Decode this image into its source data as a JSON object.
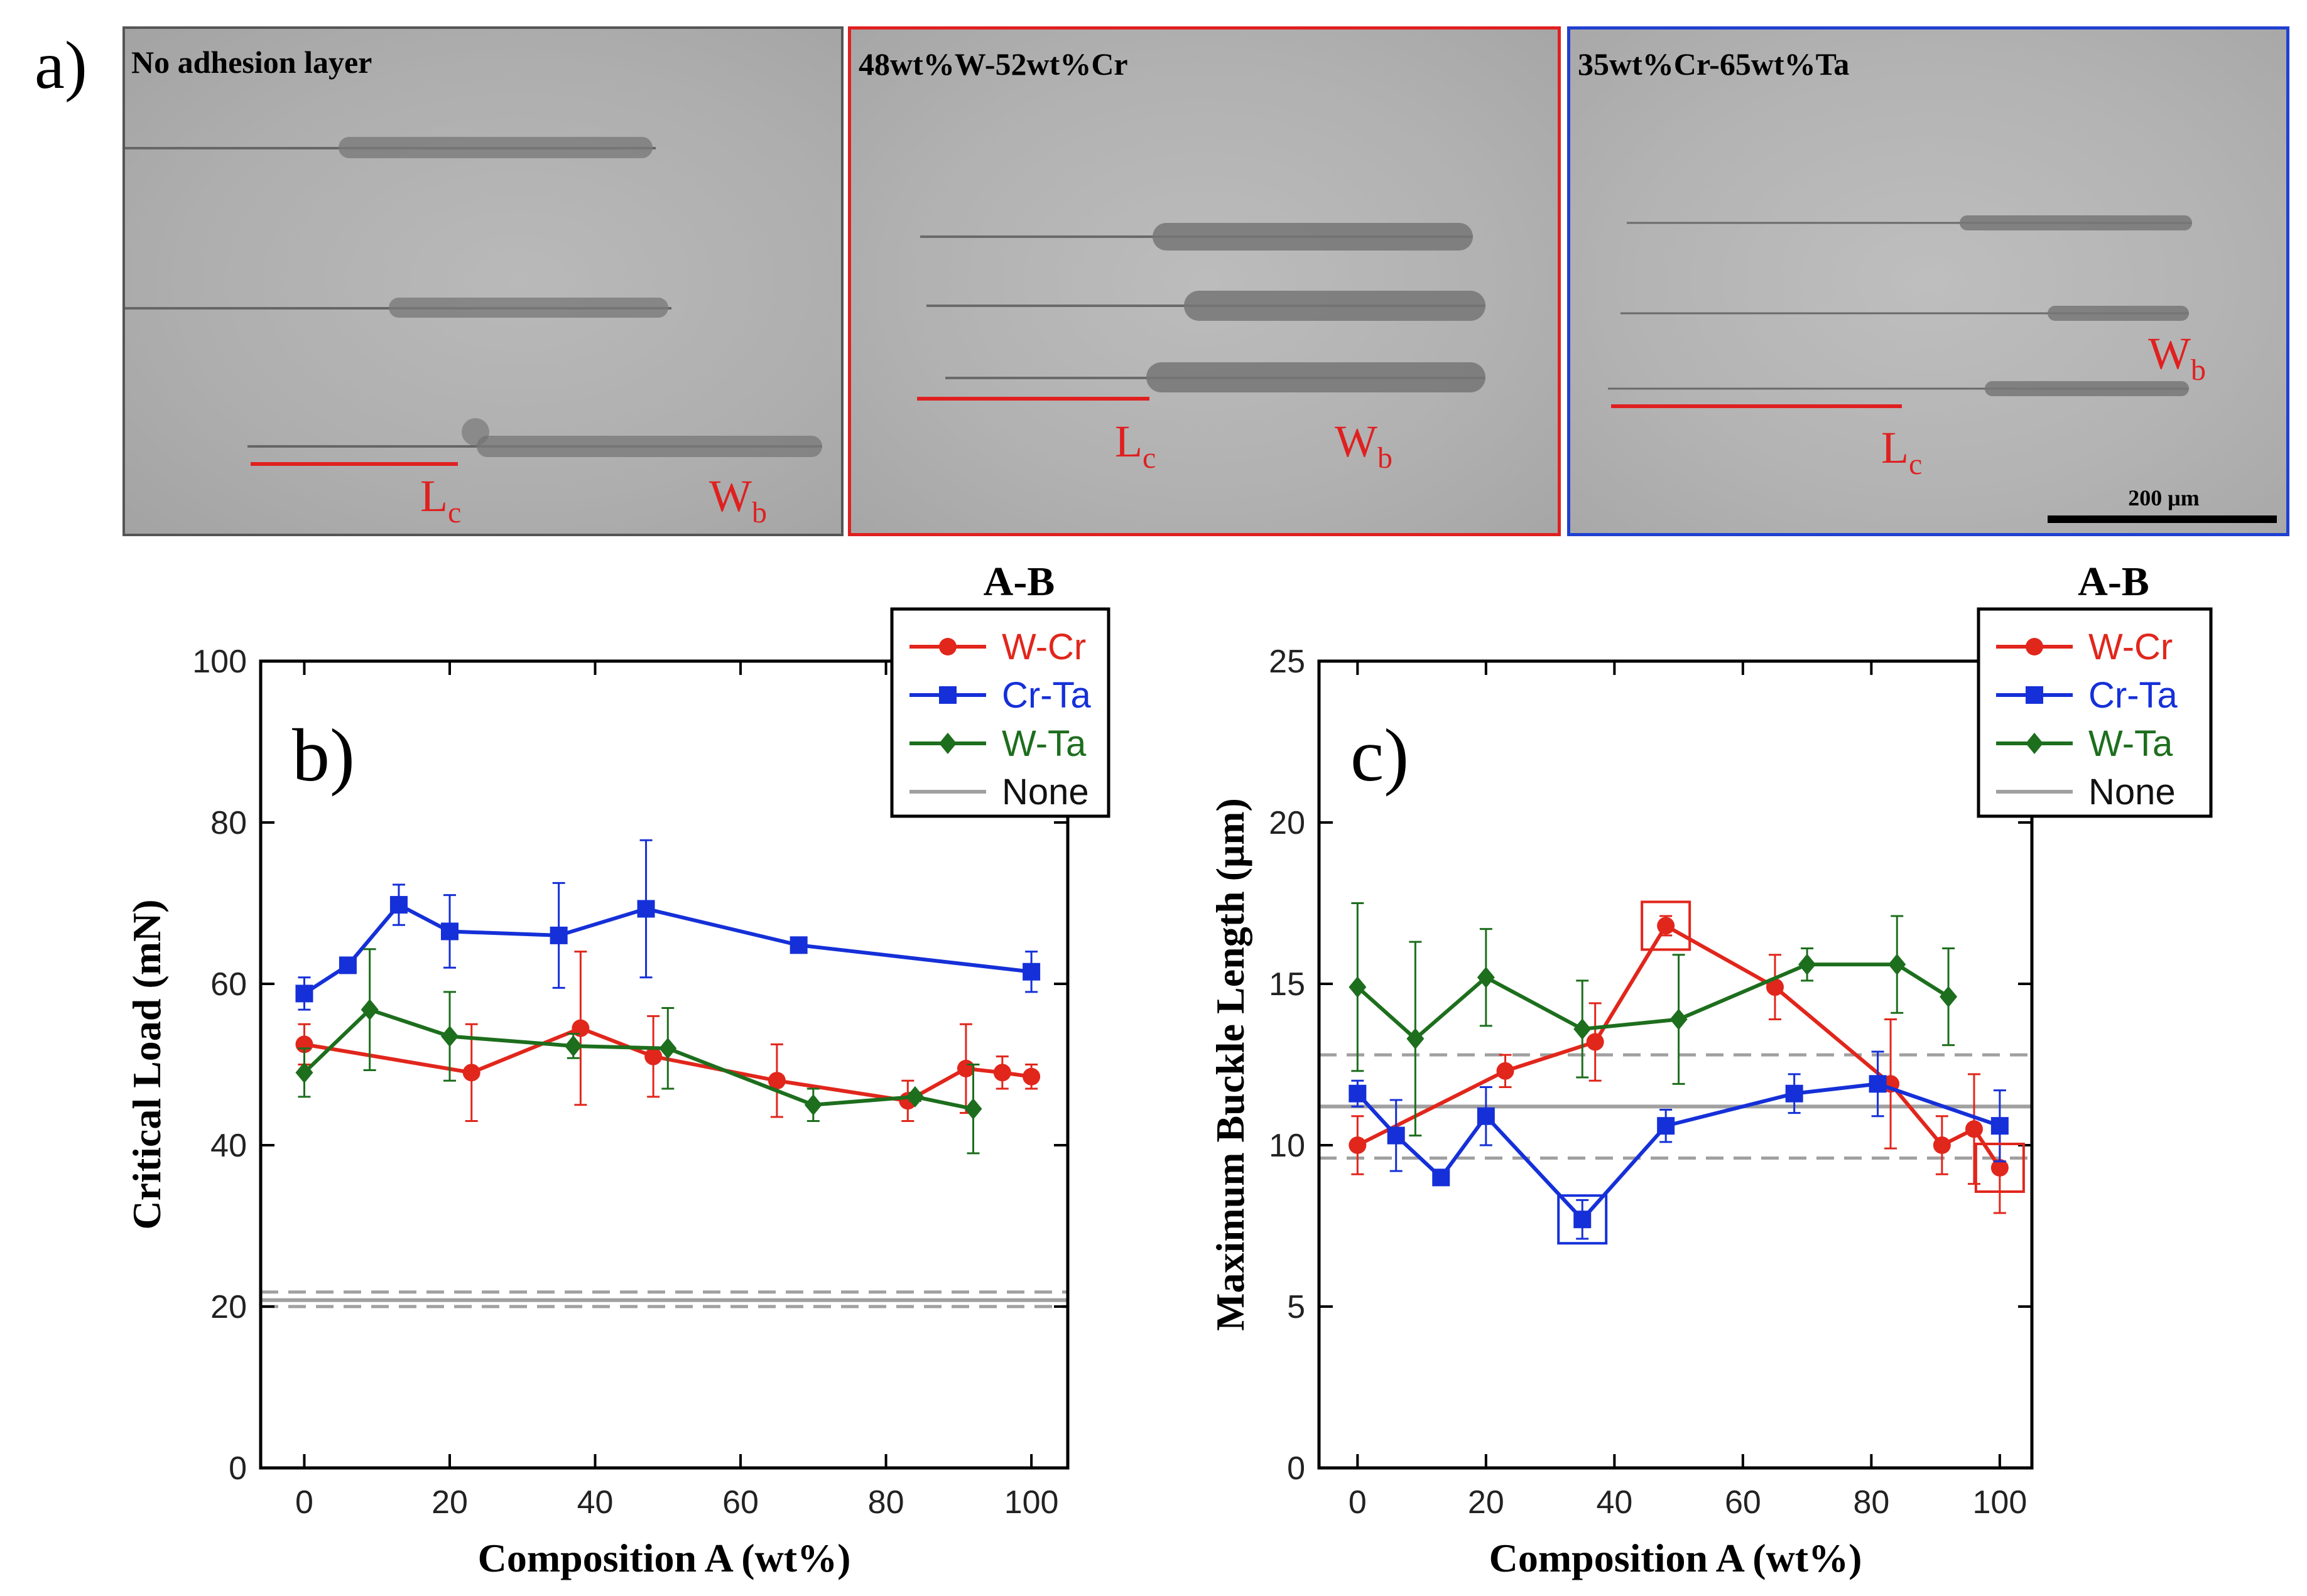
{
  "panel_labels": {
    "a": "a)",
    "b": "b)",
    "c": "c)"
  },
  "micrographs": [
    {
      "label": "No adhesion layer",
      "border": "#555555",
      "lc": "L",
      "lc_sub": "c",
      "wb": "W",
      "wb_sub": "b"
    },
    {
      "label": "48wt%W-52wt%Cr",
      "border": "#e02020",
      "lc": "L",
      "lc_sub": "c",
      "wb": "W",
      "wb_sub": "b"
    },
    {
      "label": "35wt%Cr-65wt%Ta",
      "border": "#2040d0",
      "lc": "L",
      "lc_sub": "c",
      "wb": "W",
      "wb_sub": "b",
      "scale_bar": "200 μm"
    }
  ],
  "colors": {
    "wcr": "#e1261c",
    "crta": "#1530d8",
    "wta": "#1d6e1d",
    "none": "#a0a0a0",
    "annot_red": "#e02020"
  },
  "chart_data": [
    {
      "type": "line",
      "panel": "b)",
      "xlabel": "Composition A (wt%)",
      "ylabel": "Critical Load (mN)",
      "xlim": [
        -6,
        105
      ],
      "ylim": [
        0,
        100
      ],
      "xticks": [
        0,
        20,
        40,
        60,
        80,
        100
      ],
      "yticks": [
        0,
        20,
        40,
        60,
        80,
        100
      ],
      "legend_title": "A-B",
      "legend_position": "top-right",
      "series": [
        {
          "name": "W-Cr",
          "color": "#e1261c",
          "marker": "circle",
          "x": [
            0,
            23,
            38,
            48,
            65,
            83,
            91,
            96,
            100
          ],
          "y": [
            52.5,
            49,
            54.5,
            51,
            48,
            45.5,
            49.5,
            49,
            48.5
          ],
          "err": [
            2.5,
            6,
            9.5,
            5,
            4.5,
            2.5,
            5.5,
            2,
            1.5
          ]
        },
        {
          "name": "Cr-Ta",
          "color": "#1530d8",
          "marker": "square",
          "x": [
            0,
            6,
            13,
            20,
            35,
            47,
            68,
            100
          ],
          "y": [
            58.8,
            62.3,
            69.8,
            66.5,
            66,
            69.3,
            64.8,
            61.5
          ],
          "err": [
            2,
            0.5,
            2.5,
            4.5,
            6.5,
            8.5,
            0.5,
            2.5
          ]
        },
        {
          "name": "W-Ta",
          "color": "#1d6e1d",
          "marker": "diamond",
          "x": [
            0,
            9,
            20,
            37,
            50,
            70,
            84,
            92
          ],
          "y": [
            49,
            56.8,
            53.5,
            52.3,
            52,
            45,
            46,
            44.5
          ],
          "err": [
            3,
            7.5,
            5.5,
            1.5,
            5,
            2,
            0.5,
            5.5
          ]
        },
        {
          "name": "None",
          "color": "#a0a0a0",
          "style": "hline",
          "value": 20.8,
          "band": [
            20,
            21.8
          ]
        }
      ]
    },
    {
      "type": "line",
      "panel": "c)",
      "xlabel": "Composition A (wt%)",
      "ylabel": "Maximum Buckle Length (μm)",
      "xlim": [
        -6,
        105
      ],
      "ylim": [
        0,
        25
      ],
      "xticks": [
        0,
        20,
        40,
        60,
        80,
        100
      ],
      "yticks": [
        0,
        5,
        10,
        15,
        20,
        25
      ],
      "legend_title": "A-B",
      "legend_position": "top-right",
      "series": [
        {
          "name": "W-Cr",
          "color": "#e1261c",
          "marker": "circle",
          "x": [
            0,
            23,
            37,
            48,
            65,
            83,
            91,
            96,
            100
          ],
          "y": [
            10,
            12.3,
            13.2,
            16.8,
            14.9,
            11.9,
            10,
            10.5,
            9.3
          ],
          "err": [
            0.9,
            0.5,
            1.2,
            0.3,
            1,
            2,
            0.9,
            1.7,
            1.4
          ]
        },
        {
          "name": "Cr-Ta",
          "color": "#1530d8",
          "marker": "square",
          "x": [
            0,
            6,
            13,
            20,
            35,
            48,
            68,
            81,
            100
          ],
          "y": [
            11.6,
            10.3,
            9,
            10.9,
            7.7,
            10.6,
            11.6,
            11.9,
            10.6
          ],
          "err": [
            0.4,
            1.1,
            0.1,
            0.9,
            0.6,
            0.5,
            0.6,
            1,
            1.1
          ]
        },
        {
          "name": "W-Ta",
          "color": "#1d6e1d",
          "marker": "diamond",
          "x": [
            0,
            9,
            20,
            35,
            50,
            70,
            84,
            92
          ],
          "y": [
            14.9,
            13.3,
            15.2,
            13.6,
            13.9,
            15.6,
            15.6,
            14.6
          ],
          "err": [
            2.6,
            3,
            1.5,
            1.5,
            2,
            0.5,
            1.5,
            1.5
          ]
        },
        {
          "name": "None",
          "color": "#a0a0a0",
          "style": "hline",
          "value": 11.2,
          "band": [
            9.6,
            12.8
          ]
        }
      ],
      "highlight_boxes": [
        {
          "series": "W-Cr",
          "x": 48,
          "y": 16.8,
          "color": "#e1261c"
        },
        {
          "series": "Cr-Ta",
          "x": 35,
          "y": 7.7,
          "color": "#1530d8"
        },
        {
          "series": "W-Cr",
          "x": 100,
          "y": 9.3,
          "color": "#e1261c"
        }
      ]
    }
  ]
}
